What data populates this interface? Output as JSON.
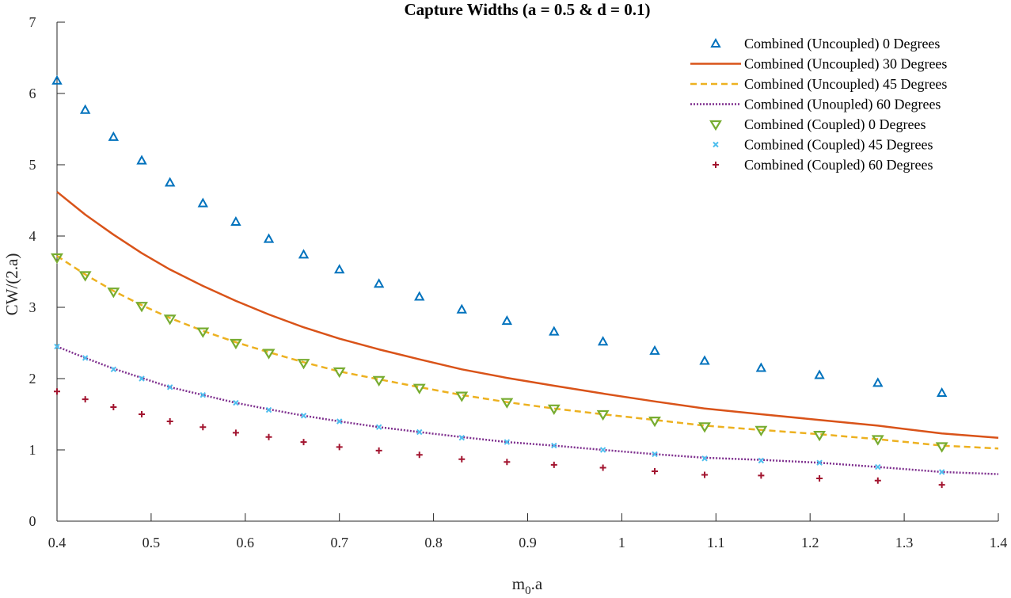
{
  "chart_data": {
    "type": "line",
    "title": "Capture Widths (a = 0.5 & d = 0.1)",
    "xlabel_main": "m",
    "xlabel_sub": "0",
    "xlabel_rest": ".a",
    "ylabel": "CW/(2.a)",
    "xlim": [
      0.4,
      1.4
    ],
    "ylim": [
      0,
      7
    ],
    "xticks": [
      0.4,
      0.5,
      0.6,
      0.7,
      0.8,
      0.9,
      1,
      1.1,
      1.2,
      1.3,
      1.4
    ],
    "xtick_labels": [
      "0.4",
      "0.5",
      "0.6",
      "0.7",
      "0.8",
      "0.9",
      "1",
      "1.1",
      "1.2",
      "1.3",
      "1.4"
    ],
    "yticks": [
      0,
      1,
      2,
      3,
      4,
      5,
      6,
      7
    ],
    "ytick_labels": [
      "0",
      "1",
      "2",
      "3",
      "4",
      "5",
      "6",
      "7"
    ],
    "grid": false,
    "legend_position": "top-right",
    "series": [
      {
        "name": "Combined (Uncoupled) 0 Degrees",
        "style": "marker",
        "marker": "triangle-up",
        "color": "#0072BD",
        "x": [
          0.4,
          0.43,
          0.46,
          0.49,
          0.52,
          0.555,
          0.59,
          0.625,
          0.662,
          0.7,
          0.742,
          0.785,
          0.83,
          0.878,
          0.928,
          0.98,
          1.035,
          1.088,
          1.148,
          1.21,
          1.272,
          1.34
        ],
        "y": [
          6.18,
          5.77,
          5.39,
          5.06,
          4.75,
          4.46,
          4.2,
          3.96,
          3.74,
          3.53,
          3.33,
          3.15,
          2.97,
          2.81,
          2.66,
          2.52,
          2.39,
          2.25,
          2.15,
          2.05,
          1.94,
          1.8
        ]
      },
      {
        "name": "Combined (Uncoupled) 30 Degrees",
        "style": "line",
        "dash": "solid",
        "color": "#D95319",
        "x": [
          0.4,
          0.43,
          0.46,
          0.49,
          0.52,
          0.555,
          0.59,
          0.625,
          0.662,
          0.7,
          0.742,
          0.785,
          0.83,
          0.878,
          0.928,
          0.98,
          1.035,
          1.088,
          1.148,
          1.21,
          1.272,
          1.34,
          1.4
        ],
        "y": [
          4.62,
          4.3,
          4.02,
          3.76,
          3.53,
          3.3,
          3.09,
          2.9,
          2.72,
          2.56,
          2.41,
          2.27,
          2.13,
          2.01,
          1.9,
          1.79,
          1.68,
          1.58,
          1.5,
          1.42,
          1.34,
          1.23,
          1.17
        ]
      },
      {
        "name": "Combined (Uncoupled) 45 Degrees",
        "style": "line",
        "dash": "dashed",
        "color": "#EDB120",
        "x": [
          0.4,
          0.43,
          0.46,
          0.49,
          0.52,
          0.555,
          0.59,
          0.625,
          0.662,
          0.7,
          0.742,
          0.785,
          0.83,
          0.878,
          0.928,
          0.98,
          1.035,
          1.088,
          1.148,
          1.21,
          1.272,
          1.34,
          1.4
        ],
        "y": [
          3.72,
          3.46,
          3.23,
          3.03,
          2.85,
          2.67,
          2.51,
          2.37,
          2.23,
          2.1,
          1.99,
          1.88,
          1.77,
          1.67,
          1.58,
          1.5,
          1.42,
          1.34,
          1.28,
          1.22,
          1.15,
          1.06,
          1.02
        ]
      },
      {
        "name": "Combined (Unoupled) 60 Degrees",
        "style": "line",
        "dash": "dotted",
        "color": "#7E2F8E",
        "x": [
          0.4,
          0.43,
          0.46,
          0.49,
          0.52,
          0.555,
          0.59,
          0.625,
          0.662,
          0.7,
          0.742,
          0.785,
          0.83,
          0.878,
          0.928,
          0.98,
          1.035,
          1.088,
          1.148,
          1.21,
          1.272,
          1.34,
          1.4
        ],
        "y": [
          2.45,
          2.29,
          2.14,
          2.01,
          1.88,
          1.77,
          1.66,
          1.57,
          1.48,
          1.4,
          1.32,
          1.25,
          1.18,
          1.11,
          1.06,
          1.0,
          0.94,
          0.89,
          0.86,
          0.82,
          0.76,
          0.69,
          0.66
        ]
      },
      {
        "name": "Combined (Coupled) 0 Degrees",
        "style": "marker",
        "marker": "triangle-down",
        "color": "#77AC30",
        "x": [
          0.4,
          0.43,
          0.46,
          0.49,
          0.52,
          0.555,
          0.59,
          0.625,
          0.662,
          0.7,
          0.742,
          0.785,
          0.83,
          0.878,
          0.928,
          0.98,
          1.035,
          1.088,
          1.148,
          1.21,
          1.272,
          1.34
        ],
        "y": [
          3.7,
          3.45,
          3.22,
          3.02,
          2.84,
          2.66,
          2.5,
          2.36,
          2.22,
          2.1,
          1.98,
          1.87,
          1.76,
          1.67,
          1.58,
          1.5,
          1.41,
          1.33,
          1.28,
          1.21,
          1.15,
          1.05
        ]
      },
      {
        "name": "Combined (Coupled) 45 Degrees",
        "style": "marker",
        "marker": "x",
        "color": "#4DBEEE",
        "x": [
          0.4,
          0.43,
          0.46,
          0.49,
          0.52,
          0.555,
          0.59,
          0.625,
          0.662,
          0.7,
          0.742,
          0.785,
          0.83,
          0.878,
          0.928,
          0.98,
          1.035,
          1.088,
          1.148,
          1.21,
          1.272,
          1.34
        ],
        "y": [
          2.45,
          2.29,
          2.13,
          2.0,
          1.88,
          1.77,
          1.66,
          1.56,
          1.48,
          1.4,
          1.32,
          1.25,
          1.17,
          1.11,
          1.06,
          1.0,
          0.94,
          0.88,
          0.85,
          0.82,
          0.76,
          0.69
        ]
      },
      {
        "name": "Combined (Coupled) 60 Degrees",
        "style": "marker",
        "marker": "plus",
        "color": "#A2142F",
        "x": [
          0.4,
          0.43,
          0.46,
          0.49,
          0.52,
          0.555,
          0.59,
          0.625,
          0.662,
          0.7,
          0.742,
          0.785,
          0.83,
          0.878,
          0.928,
          0.98,
          1.035,
          1.088,
          1.148,
          1.21,
          1.272,
          1.34
        ],
        "y": [
          1.82,
          1.71,
          1.6,
          1.5,
          1.4,
          1.32,
          1.24,
          1.18,
          1.11,
          1.04,
          0.99,
          0.93,
          0.87,
          0.83,
          0.79,
          0.75,
          0.7,
          0.65,
          0.64,
          0.6,
          0.57,
          0.51
        ]
      }
    ]
  }
}
